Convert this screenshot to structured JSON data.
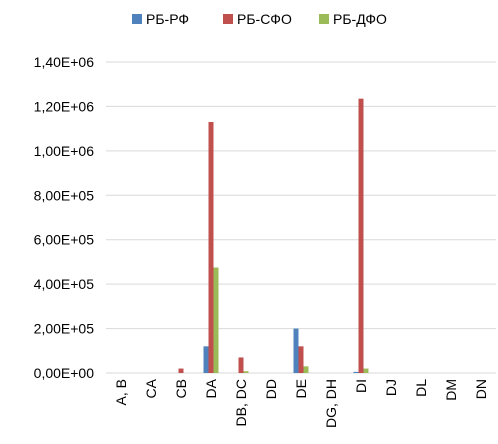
{
  "chart_data": {
    "type": "bar",
    "categories": [
      "A, B",
      "CA",
      "CB",
      "DA",
      "DB, DC",
      "DD",
      "DE",
      "DG, DH",
      "DI",
      "DJ",
      "DL",
      "DM",
      "DN"
    ],
    "series": [
      {
        "name": "РБ-РФ",
        "color": "#4f81bd",
        "values": [
          0,
          0,
          0,
          120000,
          0,
          0,
          200000,
          0,
          5000,
          0,
          0,
          0,
          0
        ]
      },
      {
        "name": "РБ-СФО",
        "color": "#c0504d",
        "values": [
          0,
          0,
          20000,
          1130000,
          70000,
          0,
          120000,
          0,
          1235000,
          0,
          0,
          0,
          0
        ]
      },
      {
        "name": "РБ-ДФО",
        "color": "#9bbb59",
        "values": [
          0,
          0,
          0,
          475000,
          8000,
          0,
          30000,
          0,
          20000,
          0,
          0,
          0,
          0
        ]
      }
    ],
    "y_ticks": [
      "0,00E+00",
      "2,00E+05",
      "4,00E+05",
      "6,00E+05",
      "8,00E+05",
      "1,00E+06",
      "1,20E+06",
      "1,40E+06"
    ],
    "ylim": [
      0,
      1400000
    ],
    "grid": true,
    "legend_position": "top-center",
    "title": "",
    "xlabel": "",
    "ylabel": ""
  }
}
